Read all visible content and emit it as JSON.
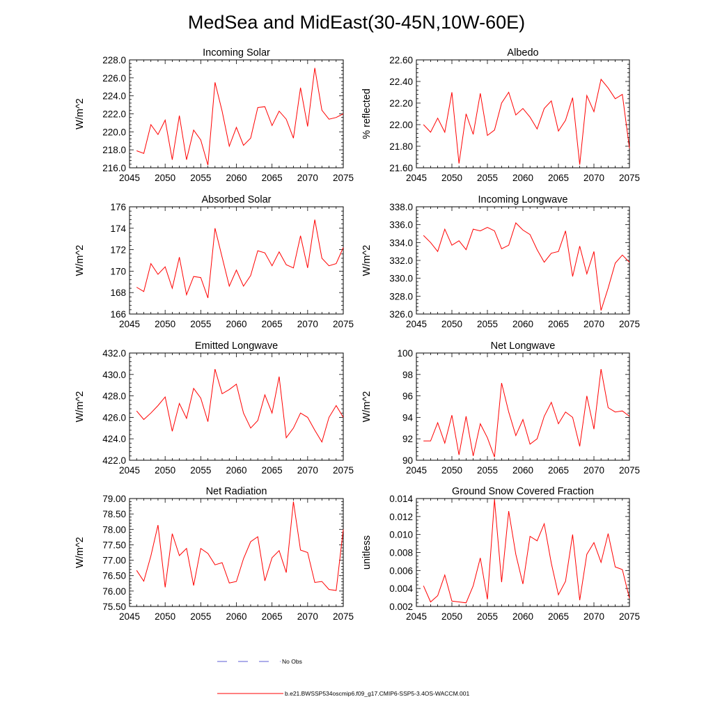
{
  "figure": {
    "title": "MedSea and MidEast(30-45N,10W-60E)",
    "legend": [
      {
        "label": "No Obs",
        "color": "#5b5bd6",
        "style": "dashed"
      },
      {
        "label": "b.e21.BWSSP534oscmip6.f09_g17.CMIP6-SSP5-3.4OS-WACCM.001",
        "color": "#ff0000",
        "style": "solid"
      }
    ]
  },
  "chart_data": [
    {
      "type": "line",
      "title": "Incoming Solar",
      "ylabel": "W/m^2",
      "xlim": [
        2045,
        2075
      ],
      "ylim": [
        216,
        228
      ],
      "xticks": [
        2045,
        2050,
        2055,
        2060,
        2065,
        2070,
        2075
      ],
      "xtick_labels": [
        "2045",
        "2050",
        "2055",
        "2060",
        "2065",
        "2070",
        "2075"
      ],
      "yticks": [
        216,
        218,
        220,
        222,
        224,
        226,
        228
      ],
      "ytick_labels": [
        "216.0",
        "218.0",
        "220.0",
        "222.0",
        "224.0",
        "226.0",
        "228.0"
      ],
      "series": [
        {
          "name": "b.e21.BWSSP534oscmip6.f09_g17.CMIP6-SSP5-3.4OS-WACCM.001",
          "color": "#ff0000",
          "x": [
            2046,
            2047,
            2048,
            2049,
            2050,
            2051,
            2052,
            2053,
            2054,
            2055,
            2056,
            2057,
            2058,
            2059,
            2060,
            2061,
            2062,
            2063,
            2064,
            2065,
            2066,
            2067,
            2068,
            2069,
            2070,
            2071,
            2072,
            2073,
            2074,
            2075
          ],
          "y": [
            217.9,
            217.6,
            220.8,
            219.7,
            221.3,
            216.9,
            221.8,
            216.9,
            220.2,
            219.1,
            216.3,
            225.5,
            222.3,
            218.4,
            220.5,
            218.5,
            219.3,
            222.7,
            222.8,
            220.7,
            222.3,
            221.4,
            219.3,
            224.9,
            220.6,
            227.1,
            222.4,
            221.4,
            221.6,
            222.0
          ]
        }
      ]
    },
    {
      "type": "line",
      "title": "Albedo",
      "ylabel": "% reflected",
      "xlim": [
        2045,
        2075
      ],
      "ylim": [
        21.6,
        22.6
      ],
      "xticks": [
        2045,
        2050,
        2055,
        2060,
        2065,
        2070,
        2075
      ],
      "xtick_labels": [
        "2045",
        "2050",
        "2055",
        "2060",
        "2065",
        "2070",
        "2075"
      ],
      "yticks": [
        21.6,
        21.8,
        22.0,
        22.2,
        22.4,
        22.6
      ],
      "ytick_labels": [
        "21.60",
        "21.80",
        "22.00",
        "22.20",
        "22.40",
        "22.60"
      ],
      "series": [
        {
          "name": "b.e21.BWSSP534oscmip6.f09_g17.CMIP6-SSP5-3.4OS-WACCM.001",
          "color": "#ff0000",
          "x": [
            2046,
            2047,
            2048,
            2049,
            2050,
            2051,
            2052,
            2053,
            2054,
            2055,
            2056,
            2057,
            2058,
            2059,
            2060,
            2061,
            2062,
            2063,
            2064,
            2065,
            2066,
            2067,
            2068,
            2069,
            2070,
            2071,
            2072,
            2073,
            2074,
            2075
          ],
          "y": [
            22.0,
            21.93,
            22.06,
            21.93,
            22.3,
            21.64,
            22.1,
            21.91,
            22.29,
            21.9,
            21.95,
            22.2,
            22.3,
            22.09,
            22.15,
            22.07,
            21.96,
            22.15,
            22.22,
            21.94,
            22.04,
            22.25,
            21.63,
            22.27,
            22.12,
            22.42,
            22.34,
            22.24,
            22.28,
            21.78
          ]
        }
      ]
    },
    {
      "type": "line",
      "title": "Absorbed Solar",
      "ylabel": "W/m^2",
      "xlim": [
        2045,
        2075
      ],
      "ylim": [
        166,
        176
      ],
      "xticks": [
        2045,
        2050,
        2055,
        2060,
        2065,
        2070,
        2075
      ],
      "xtick_labels": [
        "2045",
        "2050",
        "2055",
        "2060",
        "2065",
        "2070",
        "2075"
      ],
      "yticks": [
        166,
        168,
        170,
        172,
        174,
        176
      ],
      "ytick_labels": [
        "166",
        "168",
        "170",
        "172",
        "174",
        "176"
      ],
      "series": [
        {
          "name": "b.e21.BWSSP534oscmip6.f09_g17.CMIP6-SSP5-3.4OS-WACCM.001",
          "color": "#ff0000",
          "x": [
            2046,
            2047,
            2048,
            2049,
            2050,
            2051,
            2052,
            2053,
            2054,
            2055,
            2056,
            2057,
            2058,
            2059,
            2060,
            2061,
            2062,
            2063,
            2064,
            2065,
            2066,
            2067,
            2068,
            2069,
            2070,
            2071,
            2072,
            2073,
            2074,
            2075
          ],
          "y": [
            168.5,
            168.1,
            170.7,
            169.7,
            170.4,
            168.4,
            171.3,
            167.8,
            169.5,
            169.4,
            167.5,
            174.0,
            171.3,
            168.6,
            170.1,
            168.6,
            169.6,
            171.9,
            171.7,
            170.5,
            171.8,
            170.6,
            170.3,
            173.3,
            170.3,
            174.8,
            171.2,
            170.5,
            170.7,
            172.2
          ]
        }
      ]
    },
    {
      "type": "line",
      "title": "Incoming Longwave",
      "ylabel": "W/m^2",
      "xlim": [
        2045,
        2075
      ],
      "ylim": [
        326,
        338
      ],
      "xticks": [
        2045,
        2050,
        2055,
        2060,
        2065,
        2070,
        2075
      ],
      "xtick_labels": [
        "2045",
        "2050",
        "2055",
        "2060",
        "2065",
        "2070",
        "2075"
      ],
      "yticks": [
        326,
        328,
        330,
        332,
        334,
        336,
        338
      ],
      "ytick_labels": [
        "326.0",
        "328.0",
        "330.0",
        "332.0",
        "334.0",
        "336.0",
        "338.0"
      ],
      "series": [
        {
          "name": "b.e21.BWSSP534oscmip6.f09_g17.CMIP6-SSP5-3.4OS-WACCM.001",
          "color": "#ff0000",
          "x": [
            2046,
            2047,
            2048,
            2049,
            2050,
            2051,
            2052,
            2053,
            2054,
            2055,
            2056,
            2057,
            2058,
            2059,
            2060,
            2061,
            2062,
            2063,
            2064,
            2065,
            2066,
            2067,
            2068,
            2069,
            2070,
            2071,
            2072,
            2073,
            2074,
            2075
          ],
          "y": [
            334.8,
            334.0,
            333.0,
            335.5,
            333.7,
            334.2,
            333.2,
            335.5,
            335.3,
            335.7,
            335.3,
            333.3,
            333.7,
            336.2,
            335.4,
            334.9,
            333.2,
            331.8,
            332.8,
            333.0,
            335.3,
            330.2,
            333.6,
            330.5,
            333.0,
            326.4,
            328.9,
            331.7,
            332.6,
            331.8
          ]
        }
      ]
    },
    {
      "type": "line",
      "title": "Emitted Longwave",
      "ylabel": "W/m^2",
      "xlim": [
        2045,
        2075
      ],
      "ylim": [
        422,
        432
      ],
      "xticks": [
        2045,
        2050,
        2055,
        2060,
        2065,
        2070,
        2075
      ],
      "xtick_labels": [
        "2045",
        "2050",
        "2055",
        "2060",
        "2065",
        "2070",
        "2075"
      ],
      "yticks": [
        422,
        424,
        426,
        428,
        430,
        432
      ],
      "ytick_labels": [
        "422.0",
        "424.0",
        "426.0",
        "428.0",
        "430.0",
        "432.0"
      ],
      "series": [
        {
          "name": "b.e21.BWSSP534oscmip6.f09_g17.CMIP6-SSP5-3.4OS-WACCM.001",
          "color": "#ff0000",
          "x": [
            2046,
            2047,
            2048,
            2049,
            2050,
            2051,
            2052,
            2053,
            2054,
            2055,
            2056,
            2057,
            2058,
            2059,
            2060,
            2061,
            2062,
            2063,
            2064,
            2065,
            2066,
            2067,
            2068,
            2069,
            2070,
            2071,
            2072,
            2073,
            2074,
            2075
          ],
          "y": [
            426.6,
            425.8,
            426.4,
            427.1,
            427.9,
            424.7,
            427.3,
            425.9,
            428.7,
            427.8,
            425.6,
            430.5,
            428.2,
            428.6,
            429.1,
            426.4,
            425.0,
            425.7,
            428.1,
            426.4,
            429.8,
            424.1,
            425.0,
            426.4,
            426.0,
            424.8,
            423.7,
            426.0,
            427.1,
            426.0
          ]
        }
      ]
    },
    {
      "type": "line",
      "title": "Net Longwave",
      "ylabel": "W/m^2",
      "xlim": [
        2045,
        2075
      ],
      "ylim": [
        90,
        100
      ],
      "xticks": [
        2045,
        2050,
        2055,
        2060,
        2065,
        2070,
        2075
      ],
      "xtick_labels": [
        "2045",
        "2050",
        "2055",
        "2060",
        "2065",
        "2070",
        "2075"
      ],
      "yticks": [
        90,
        92,
        94,
        96,
        98,
        100
      ],
      "ytick_labels": [
        "90",
        "92",
        "94",
        "96",
        "98",
        "100"
      ],
      "series": [
        {
          "name": "b.e21.BWSSP534oscmip6.f09_g17.CMIP6-SSP5-3.4OS-WACCM.001",
          "color": "#ff0000",
          "x": [
            2046,
            2047,
            2048,
            2049,
            2050,
            2051,
            2052,
            2053,
            2054,
            2055,
            2056,
            2057,
            2058,
            2059,
            2060,
            2061,
            2062,
            2063,
            2064,
            2065,
            2066,
            2067,
            2068,
            2069,
            2070,
            2071,
            2072,
            2073,
            2074,
            2075
          ],
          "y": [
            91.8,
            91.8,
            93.5,
            91.6,
            94.2,
            90.5,
            94.1,
            90.4,
            93.4,
            92.1,
            90.3,
            97.2,
            94.5,
            92.3,
            93.8,
            91.5,
            92.0,
            94.1,
            95.4,
            93.4,
            94.5,
            94.0,
            91.3,
            96.0,
            92.9,
            98.5,
            94.9,
            94.5,
            94.6,
            94.1
          ]
        }
      ]
    },
    {
      "type": "line",
      "title": "Net Radiation",
      "ylabel": "W/m^2",
      "xlim": [
        2045,
        2075
      ],
      "ylim": [
        75.5,
        79.0
      ],
      "xticks": [
        2045,
        2050,
        2055,
        2060,
        2065,
        2070,
        2075
      ],
      "xtick_labels": [
        "2045",
        "2050",
        "2055",
        "2060",
        "2065",
        "2070",
        "2075"
      ],
      "yticks": [
        75.5,
        76.0,
        76.5,
        77.0,
        77.5,
        78.0,
        78.5,
        79.0
      ],
      "ytick_labels": [
        "75.50",
        "76.00",
        "76.50",
        "77.00",
        "77.50",
        "78.00",
        "78.50",
        "79.00"
      ],
      "series": [
        {
          "name": "b.e21.BWSSP534oscmip6.f09_g17.CMIP6-SSP5-3.4OS-WACCM.001",
          "color": "#ff0000",
          "x": [
            2046,
            2047,
            2048,
            2049,
            2050,
            2051,
            2052,
            2053,
            2054,
            2055,
            2056,
            2057,
            2058,
            2059,
            2060,
            2061,
            2062,
            2063,
            2064,
            2065,
            2066,
            2067,
            2068,
            2069,
            2070,
            2071,
            2072,
            2073,
            2074,
            2075
          ],
          "y": [
            76.67,
            76.32,
            77.14,
            78.14,
            76.12,
            77.86,
            77.15,
            77.38,
            76.18,
            77.38,
            77.22,
            76.85,
            76.92,
            76.26,
            76.31,
            77.05,
            77.6,
            77.76,
            76.33,
            77.08,
            77.31,
            76.6,
            78.9,
            77.33,
            77.25,
            76.28,
            76.31,
            76.05,
            76.02,
            78.0
          ]
        }
      ]
    },
    {
      "type": "line",
      "title": "Ground Snow Covered Fraction",
      "ylabel": "unitless",
      "xlim": [
        2045,
        2075
      ],
      "ylim": [
        0.002,
        0.014
      ],
      "xticks": [
        2045,
        2050,
        2055,
        2060,
        2065,
        2070,
        2075
      ],
      "xtick_labels": [
        "2045",
        "2050",
        "2055",
        "2060",
        "2065",
        "2070",
        "2075"
      ],
      "yticks": [
        0.002,
        0.004,
        0.006,
        0.008,
        0.01,
        0.012,
        0.014
      ],
      "ytick_labels": [
        "0.002",
        "0.004",
        "0.006",
        "0.008",
        "0.010",
        "0.012",
        "0.014"
      ],
      "series": [
        {
          "name": "b.e21.BWSSP534oscmip6.f09_g17.CMIP6-SSP5-3.4OS-WACCM.001",
          "color": "#ff0000",
          "x": [
            2046,
            2047,
            2048,
            2049,
            2050,
            2051,
            2052,
            2053,
            2054,
            2055,
            2056,
            2057,
            2058,
            2059,
            2060,
            2061,
            2062,
            2063,
            2064,
            2065,
            2066,
            2067,
            2068,
            2069,
            2070,
            2071,
            2072,
            2073,
            2074,
            2075
          ],
          "y": [
            0.0043,
            0.0025,
            0.0032,
            0.0055,
            0.0026,
            0.0025,
            0.0024,
            0.0043,
            0.0074,
            0.0028,
            0.0139,
            0.0047,
            0.0126,
            0.0078,
            0.0045,
            0.0098,
            0.0093,
            0.0112,
            0.0068,
            0.0033,
            0.0048,
            0.01,
            0.0027,
            0.0078,
            0.0091,
            0.0069,
            0.0101,
            0.0064,
            0.0061,
            0.0029
          ]
        }
      ]
    }
  ]
}
